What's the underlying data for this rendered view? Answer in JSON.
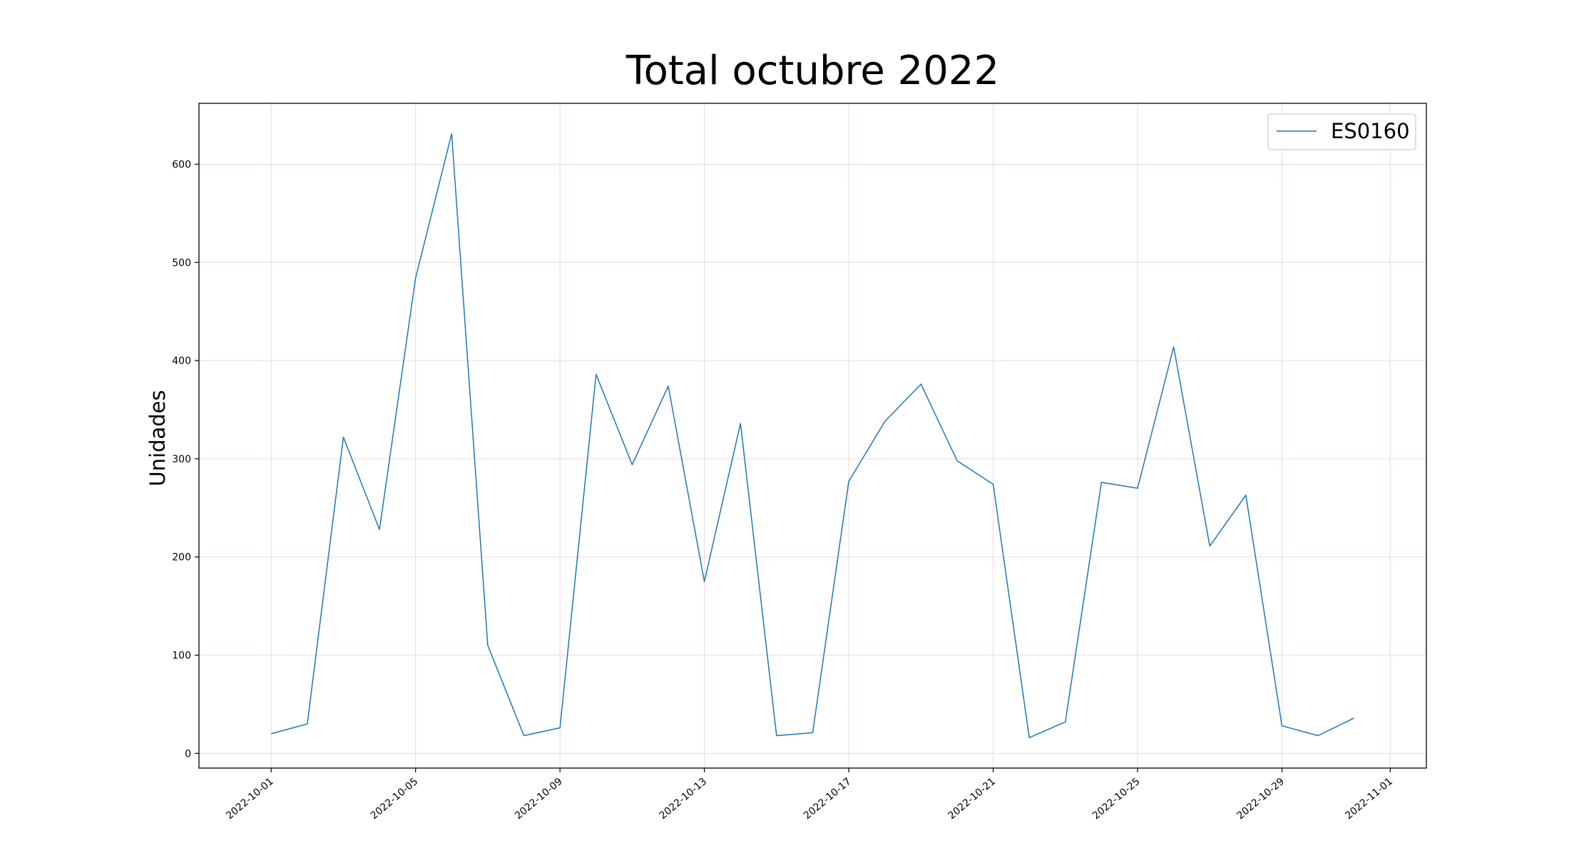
{
  "chart_data": {
    "type": "line",
    "title": "Total octubre 2022",
    "xlabel": "",
    "ylabel": "Unidades",
    "x": [
      "2022-10-01",
      "2022-10-02",
      "2022-10-03",
      "2022-10-04",
      "2022-10-05",
      "2022-10-06",
      "2022-10-07",
      "2022-10-08",
      "2022-10-09",
      "2022-10-10",
      "2022-10-11",
      "2022-10-12",
      "2022-10-13",
      "2022-10-14",
      "2022-10-15",
      "2022-10-16",
      "2022-10-17",
      "2022-10-18",
      "2022-10-19",
      "2022-10-20",
      "2022-10-21",
      "2022-10-22",
      "2022-10-23",
      "2022-10-24",
      "2022-10-25",
      "2022-10-26",
      "2022-10-27",
      "2022-10-28",
      "2022-10-29",
      "2022-10-30",
      "2022-10-31"
    ],
    "series": [
      {
        "name": "ES0160",
        "color": "#1f77b4",
        "values": [
          20,
          30,
          322,
          228,
          484,
          631,
          110,
          18,
          26,
          386,
          294,
          374,
          175,
          336,
          18,
          21,
          277,
          338,
          376,
          298,
          274,
          16,
          32,
          276,
          270,
          414,
          211,
          263,
          28,
          18,
          36
        ]
      }
    ],
    "xticks": [
      "2022-10-01",
      "2022-10-05",
      "2022-10-09",
      "2022-10-13",
      "2022-10-17",
      "2022-10-21",
      "2022-10-25",
      "2022-10-29",
      "2022-11-01"
    ],
    "yticks": [
      0,
      100,
      200,
      300,
      400,
      500,
      600
    ],
    "xlim": [
      "2022-09-29",
      "2022-11-02"
    ],
    "ylim": [
      -15,
      662
    ],
    "grid": true,
    "grid_color": "#f2d5dc",
    "legend_position": "top-right"
  }
}
